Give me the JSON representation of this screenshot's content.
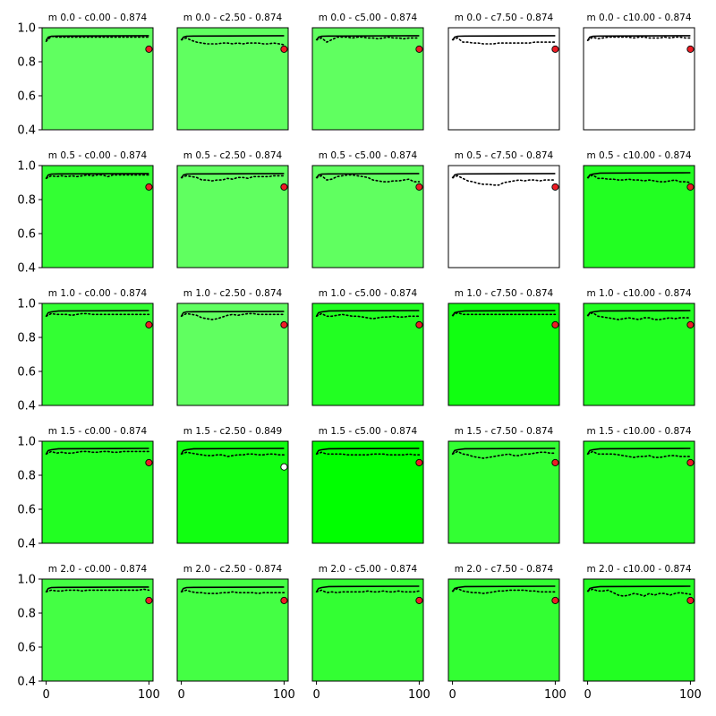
{
  "chart_data": {
    "type": "line",
    "grid": false,
    "layout": "5x5 grid of small multiples",
    "shared_axes": {
      "xlim": [
        -4,
        104
      ],
      "ylim": [
        0.4,
        1.0
      ],
      "x_ticks": [
        0,
        100
      ],
      "x_tick_labels": [
        "0",
        "100"
      ],
      "y_ticks": [
        0.4,
        0.6,
        0.8,
        1.0
      ],
      "y_tick_labels": [
        "0.4",
        "0.6",
        "0.8",
        "1.0"
      ]
    },
    "line_colors": {
      "solid": "#000000",
      "dotted": "#000000"
    },
    "marker_colors": {
      "red": "#ee1c25",
      "white": "#ffffff",
      "edge": "#000000"
    },
    "panels": [
      {
        "title": "m 0.0 - c0.00 - 0.874",
        "bg": "#60ff60",
        "marker_y": 0.874,
        "marker_color": "red",
        "solid_level": 0.953,
        "dotted": [
          0.92,
          0.95,
          0.945,
          0.945,
          0.945,
          0.945,
          0.945,
          0.945,
          0.945,
          0.945,
          0.945,
          0.945,
          0.945,
          0.945,
          0.945,
          0.945,
          0.945,
          0.945,
          0.945,
          0.945,
          0.945
        ]
      },
      {
        "title": "m 0.0 - c2.50 - 0.874",
        "bg": "#60ff60",
        "marker_y": 0.874,
        "marker_color": "red",
        "solid_level": 0.953,
        "dotted": [
          0.93,
          0.94,
          0.925,
          0.915,
          0.91,
          0.905,
          0.905,
          0.905,
          0.91,
          0.91,
          0.905,
          0.91,
          0.905,
          0.91,
          0.91,
          0.91,
          0.905,
          0.905,
          0.91,
          0.905,
          0.9
        ]
      },
      {
        "title": "m 0.0 - c5.00 - 0.874",
        "bg": "#60ff60",
        "marker_y": 0.874,
        "marker_color": "red",
        "solid_level": 0.953,
        "dotted": [
          0.93,
          0.94,
          0.915,
          0.93,
          0.945,
          0.945,
          0.945,
          0.94,
          0.945,
          0.945,
          0.94,
          0.94,
          0.935,
          0.94,
          0.945,
          0.94,
          0.94,
          0.935,
          0.94,
          0.94,
          0.94
        ]
      },
      {
        "title": "m 0.0 - c7.50 - 0.874",
        "bg": "#ffffff",
        "marker_y": 0.874,
        "marker_color": "red",
        "solid_level": 0.953,
        "dotted": [
          0.93,
          0.94,
          0.915,
          0.915,
          0.91,
          0.91,
          0.905,
          0.905,
          0.905,
          0.91,
          0.91,
          0.91,
          0.91,
          0.91,
          0.91,
          0.91,
          0.915,
          0.915,
          0.915,
          0.915,
          0.915
        ]
      },
      {
        "title": "m 0.0 - c10.00 - 0.874",
        "bg": "#ffffff",
        "marker_y": 0.874,
        "marker_color": "red",
        "solid_level": 0.953,
        "dotted": [
          0.925,
          0.945,
          0.935,
          0.94,
          0.945,
          0.945,
          0.945,
          0.945,
          0.945,
          0.94,
          0.945,
          0.945,
          0.94,
          0.94,
          0.94,
          0.945,
          0.94,
          0.945,
          0.945,
          0.94,
          0.94
        ]
      },
      {
        "title": "m 0.5 - c0.00 - 0.874",
        "bg": "#33ff33",
        "marker_y": 0.874,
        "marker_color": "red",
        "solid_level": 0.953,
        "dotted": [
          0.925,
          0.94,
          0.935,
          0.94,
          0.935,
          0.94,
          0.935,
          0.94,
          0.945,
          0.94,
          0.945,
          0.945,
          0.935,
          0.945,
          0.945,
          0.945,
          0.945,
          0.945,
          0.945,
          0.945,
          0.945
        ]
      },
      {
        "title": "m 0.5 - c2.50 - 0.874",
        "bg": "#60ff60",
        "marker_y": 0.874,
        "marker_color": "red",
        "solid_level": 0.953,
        "dotted": [
          0.93,
          0.94,
          0.935,
          0.93,
          0.915,
          0.915,
          0.91,
          0.915,
          0.915,
          0.925,
          0.92,
          0.93,
          0.93,
          0.925,
          0.935,
          0.935,
          0.935,
          0.935,
          0.94,
          0.94,
          0.94
        ]
      },
      {
        "title": "m 0.5 - c5.00 - 0.874",
        "bg": "#60ff60",
        "marker_y": 0.874,
        "marker_color": "red",
        "solid_level": 0.953,
        "dotted": [
          0.93,
          0.94,
          0.915,
          0.92,
          0.935,
          0.94,
          0.945,
          0.945,
          0.94,
          0.935,
          0.93,
          0.915,
          0.91,
          0.905,
          0.905,
          0.91,
          0.91,
          0.915,
          0.92,
          0.905,
          0.905
        ]
      },
      {
        "title": "m 0.5 - c7.50 - 0.874",
        "bg": "#ffffff",
        "marker_y": 0.874,
        "marker_color": "red",
        "solid_level": 0.953,
        "dotted": [
          0.93,
          0.94,
          0.925,
          0.91,
          0.905,
          0.895,
          0.89,
          0.89,
          0.885,
          0.885,
          0.9,
          0.905,
          0.91,
          0.915,
          0.91,
          0.915,
          0.915,
          0.91,
          0.915,
          0.915,
          0.915
        ]
      },
      {
        "title": "m 0.5 - c10.00 - 0.874",
        "bg": "#22ff22",
        "marker_y": 0.874,
        "marker_color": "red",
        "solid_level": 0.958,
        "dotted": [
          0.93,
          0.945,
          0.925,
          0.925,
          0.92,
          0.92,
          0.915,
          0.915,
          0.92,
          0.915,
          0.915,
          0.91,
          0.915,
          0.91,
          0.905,
          0.905,
          0.91,
          0.915,
          0.905,
          0.905,
          0.9
        ]
      },
      {
        "title": "m 1.0 - c0.00 - 0.874",
        "bg": "#33ff33",
        "marker_y": 0.874,
        "marker_color": "red",
        "solid_level": 0.958,
        "dotted": [
          0.925,
          0.94,
          0.935,
          0.935,
          0.935,
          0.93,
          0.935,
          0.94,
          0.94,
          0.935,
          0.935,
          0.935,
          0.935,
          0.935,
          0.935,
          0.935,
          0.935,
          0.935,
          0.935,
          0.935,
          0.935
        ]
      },
      {
        "title": "m 1.0 - c2.50 - 0.874",
        "bg": "#60ff60",
        "marker_y": 0.874,
        "marker_color": "red",
        "solid_level": 0.953,
        "dotted": [
          0.925,
          0.94,
          0.935,
          0.93,
          0.915,
          0.91,
          0.905,
          0.91,
          0.92,
          0.93,
          0.935,
          0.93,
          0.935,
          0.94,
          0.94,
          0.935,
          0.935,
          0.935,
          0.935,
          0.935,
          0.935
        ]
      },
      {
        "title": "m 1.0 - c5.00 - 0.874",
        "bg": "#22ff22",
        "marker_y": 0.874,
        "marker_color": "red",
        "solid_level": 0.958,
        "dotted": [
          0.925,
          0.94,
          0.925,
          0.925,
          0.93,
          0.935,
          0.93,
          0.925,
          0.925,
          0.92,
          0.915,
          0.91,
          0.915,
          0.92,
          0.92,
          0.925,
          0.92,
          0.92,
          0.925,
          0.925,
          0.925
        ]
      },
      {
        "title": "m 1.0 - c7.50 - 0.874",
        "bg": "#11ff11",
        "marker_y": 0.874,
        "marker_color": "red",
        "solid_level": 0.958,
        "dotted": [
          0.93,
          0.945,
          0.935,
          0.935,
          0.935,
          0.935,
          0.935,
          0.935,
          0.935,
          0.935,
          0.935,
          0.935,
          0.935,
          0.935,
          0.935,
          0.935,
          0.935,
          0.935,
          0.935,
          0.935,
          0.935
        ]
      },
      {
        "title": "m 1.0 - c10.00 - 0.874",
        "bg": "#22ff22",
        "marker_y": 0.874,
        "marker_color": "red",
        "solid_level": 0.958,
        "dotted": [
          0.93,
          0.945,
          0.925,
          0.92,
          0.915,
          0.91,
          0.905,
          0.91,
          0.915,
          0.91,
          0.905,
          0.915,
          0.915,
          0.905,
          0.905,
          0.91,
          0.915,
          0.91,
          0.915,
          0.915,
          0.915
        ]
      },
      {
        "title": "m 1.5 - c0.00 - 0.874",
        "bg": "#22ff22",
        "marker_y": 0.874,
        "marker_color": "red",
        "solid_level": 0.958,
        "dotted": [
          0.925,
          0.94,
          0.93,
          0.935,
          0.93,
          0.93,
          0.935,
          0.94,
          0.94,
          0.935,
          0.935,
          0.94,
          0.94,
          0.935,
          0.935,
          0.94,
          0.94,
          0.94,
          0.94,
          0.94,
          0.94
        ]
      },
      {
        "title": "m 1.5 - c2.50 - 0.849",
        "bg": "#11ff11",
        "marker_y": 0.849,
        "marker_color": "white",
        "solid_level": 0.958,
        "dotted": [
          0.925,
          0.935,
          0.93,
          0.925,
          0.92,
          0.915,
          0.915,
          0.92,
          0.92,
          0.91,
          0.915,
          0.92,
          0.92,
          0.925,
          0.925,
          0.92,
          0.92,
          0.925,
          0.925,
          0.92,
          0.92
        ]
      },
      {
        "title": "m 1.5 - c5.00 - 0.874",
        "bg": "#00ff00",
        "marker_y": 0.874,
        "marker_color": "red",
        "solid_level": 0.958,
        "dotted": [
          0.925,
          0.935,
          0.925,
          0.925,
          0.925,
          0.925,
          0.92,
          0.92,
          0.92,
          0.92,
          0.92,
          0.925,
          0.925,
          0.925,
          0.92,
          0.92,
          0.92,
          0.92,
          0.925,
          0.92,
          0.92
        ]
      },
      {
        "title": "m 1.5 - c7.50 - 0.874",
        "bg": "#33ff33",
        "marker_y": 0.874,
        "marker_color": "red",
        "solid_level": 0.958,
        "dotted": [
          0.925,
          0.94,
          0.925,
          0.92,
          0.91,
          0.905,
          0.9,
          0.905,
          0.91,
          0.915,
          0.92,
          0.925,
          0.915,
          0.915,
          0.925,
          0.925,
          0.93,
          0.935,
          0.935,
          0.93,
          0.93
        ]
      },
      {
        "title": "m 1.5 - c10.00 - 0.874",
        "bg": "#22ff22",
        "marker_y": 0.874,
        "marker_color": "red",
        "solid_level": 0.958,
        "dotted": [
          0.925,
          0.94,
          0.925,
          0.925,
          0.925,
          0.925,
          0.92,
          0.915,
          0.91,
          0.905,
          0.91,
          0.91,
          0.915,
          0.905,
          0.905,
          0.91,
          0.915,
          0.915,
          0.91,
          0.91,
          0.91
        ]
      },
      {
        "title": "m 2.0 - c0.00 - 0.874",
        "bg": "#44ff44",
        "marker_y": 0.874,
        "marker_color": "red",
        "solid_level": 0.953,
        "dotted": [
          0.925,
          0.935,
          0.93,
          0.93,
          0.935,
          0.935,
          0.935,
          0.93,
          0.935,
          0.935,
          0.935,
          0.935,
          0.935,
          0.935,
          0.935,
          0.935,
          0.935,
          0.935,
          0.935,
          0.94,
          0.935
        ]
      },
      {
        "title": "m 2.0 - c2.50 - 0.874",
        "bg": "#44ff44",
        "marker_y": 0.874,
        "marker_color": "red",
        "solid_level": 0.953,
        "dotted": [
          0.925,
          0.935,
          0.925,
          0.92,
          0.92,
          0.915,
          0.915,
          0.915,
          0.92,
          0.92,
          0.925,
          0.92,
          0.92,
          0.92,
          0.92,
          0.915,
          0.92,
          0.92,
          0.92,
          0.92,
          0.92
        ]
      },
      {
        "title": "m 2.0 - c5.00 - 0.874",
        "bg": "#33ff33",
        "marker_y": 0.874,
        "marker_color": "red",
        "solid_level": 0.958,
        "dotted": [
          0.925,
          0.935,
          0.92,
          0.925,
          0.92,
          0.925,
          0.925,
          0.925,
          0.925,
          0.925,
          0.93,
          0.925,
          0.925,
          0.93,
          0.925,
          0.925,
          0.93,
          0.925,
          0.925,
          0.925,
          0.93
        ]
      },
      {
        "title": "m 2.0 - c7.50 - 0.874",
        "bg": "#33ff33",
        "marker_y": 0.874,
        "marker_color": "red",
        "solid_level": 0.958,
        "dotted": [
          0.93,
          0.945,
          0.93,
          0.925,
          0.92,
          0.92,
          0.915,
          0.92,
          0.925,
          0.93,
          0.93,
          0.935,
          0.935,
          0.935,
          0.935,
          0.93,
          0.93,
          0.925,
          0.925,
          0.925,
          0.925
        ]
      },
      {
        "title": "m 2.0 - c10.00 - 0.874",
        "bg": "#22ff22",
        "marker_y": 0.874,
        "marker_color": "red",
        "solid_level": 0.958,
        "dotted": [
          0.93,
          0.94,
          0.93,
          0.93,
          0.935,
          0.92,
          0.905,
          0.9,
          0.905,
          0.915,
          0.91,
          0.9,
          0.915,
          0.905,
          0.915,
          0.915,
          0.905,
          0.915,
          0.92,
          0.915,
          0.91
        ]
      }
    ]
  }
}
